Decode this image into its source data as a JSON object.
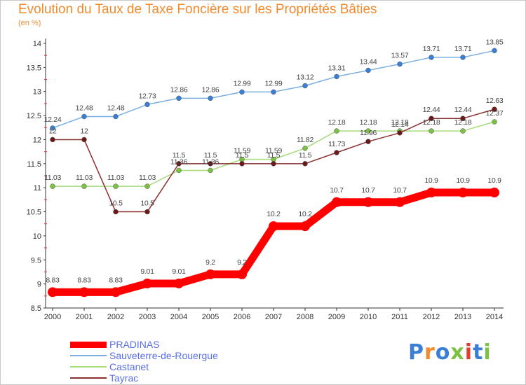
{
  "title": "Evolution du Taux de Taxe Foncière sur les Propriétés Bâties",
  "unit_label": "(en %)",
  "logo": {
    "letters": [
      "P",
      "r",
      "o",
      "x",
      "i",
      "t",
      "i"
    ],
    "colors": [
      "#3a7fd5",
      "#f28a2e",
      "#3a7fd5",
      "#7cc242",
      "#e63b2e",
      "#3a7fd5",
      "#7cc242"
    ]
  },
  "chart_data": {
    "type": "line",
    "title": "Evolution du Taux de Taxe Foncière sur les Propriétés Bâties",
    "ylabel": "(en %)",
    "xlabel": "",
    "x": [
      "2000",
      "2001",
      "2002",
      "2003",
      "2004",
      "2005",
      "2006",
      "2007",
      "2008",
      "2009",
      "2010",
      "2011",
      "2012",
      "2013",
      "2014"
    ],
    "ylim": [
      8.5,
      14
    ],
    "yticks": [
      "8.5",
      "9",
      "9.5",
      "10",
      "10.5",
      "11",
      "11.5",
      "12",
      "12.5",
      "13",
      "13.5",
      "14"
    ],
    "grid": false,
    "legend_position": "bottom-left",
    "series": [
      {
        "name": "PRADINAS",
        "color": "#ff0000",
        "values": [
          8.83,
          8.83,
          8.83,
          9.01,
          9.01,
          9.2,
          9.2,
          10.2,
          10.2,
          10.7,
          10.7,
          10.7,
          10.9,
          10.9,
          10.9
        ],
        "labels": [
          "8.83",
          "8.83",
          "8.83",
          "9.01",
          "9.01",
          "9.2",
          "9.2",
          "10.2",
          "10.2",
          "10.7",
          "10.7",
          "10.7",
          "10.9",
          "10.9",
          "10.9"
        ]
      },
      {
        "name": "Sauveterre-de-Rouergue",
        "color": "#3a7fd5",
        "values": [
          12.24,
          12.48,
          12.48,
          12.73,
          12.86,
          12.86,
          12.99,
          12.99,
          13.12,
          13.31,
          13.44,
          13.57,
          13.71,
          13.71,
          13.85
        ],
        "labels": [
          "12.24",
          "12.48",
          "12.48",
          "12.73",
          "12.86",
          "12.86",
          "12.99",
          "12.99",
          "13.12",
          "13.31",
          "13.44",
          "13.57",
          "13.71",
          "13.71",
          "13.85"
        ]
      },
      {
        "name": "Castanet",
        "color": "#7cc242",
        "values": [
          11.03,
          11.03,
          11.03,
          11.03,
          11.36,
          11.36,
          11.59,
          11.59,
          11.82,
          12.18,
          12.18,
          12.18,
          12.18,
          12.18,
          12.37
        ],
        "labels": [
          "11.03",
          "11.03",
          "11.03",
          "11.03",
          "11.36",
          "11.36",
          "11.59",
          "11.59",
          "11.82",
          "12.18",
          "12.18",
          "12.18",
          "12.18",
          "12.18",
          "12.37"
        ]
      },
      {
        "name": "Tayrac",
        "color": "#6b1a1a",
        "values": [
          12,
          12,
          10.5,
          10.5,
          11.5,
          11.5,
          11.5,
          11.5,
          11.5,
          11.73,
          11.96,
          12.14,
          12.44,
          12.44,
          12.63
        ],
        "labels": [
          "12",
          "12",
          "10.5",
          "10.5",
          "11.5",
          "11.5",
          "11.5",
          "11.5",
          "11.5",
          "11.73",
          "11.96",
          "12.14",
          "12.44",
          "12.44",
          "12.63"
        ]
      }
    ]
  }
}
